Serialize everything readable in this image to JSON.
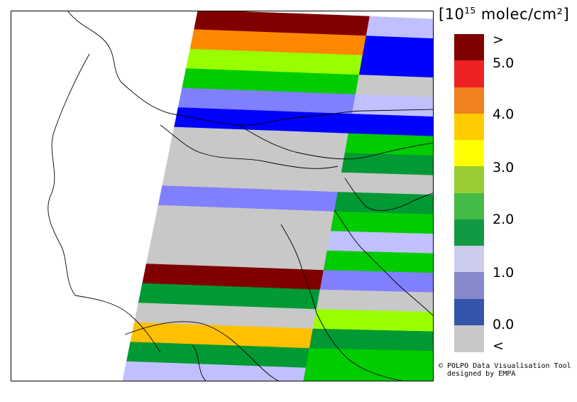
{
  "legend": {
    "title_prefix": "[10",
    "title_exponent": "15",
    "title_suffix": " molec/cm²]",
    "colors": [
      "#800000",
      "#ee2222",
      "#f08020",
      "#ffcc00",
      "#ffff00",
      "#99cc33",
      "#44bb44",
      "#119944",
      "#ccccee",
      "#8888cc",
      "#3355aa",
      "#c8c8c8"
    ],
    "labels": [
      ">",
      "5.0",
      "4.0",
      "3.0",
      "2.0",
      "1.0",
      "0.0",
      "<"
    ]
  },
  "credit": {
    "line1": "© POLPO Data Visualisation Tool",
    "line2": "designed by EMPA"
  },
  "palette": {
    "dark_red": "#800000",
    "orange": "#ff8800",
    "amber": "#ffc000",
    "lime": "#99ff00",
    "green": "#00cc00",
    "dark_green": "#009933",
    "light_lavender": "#c0c0ff",
    "lavender": "#8080ff",
    "blue": "#0000ff",
    "grey": "#c8c8c8"
  },
  "swath": {
    "pixels": [
      {
        "row": 0,
        "left": "dark_red",
        "right": "light_lavender"
      },
      {
        "row": 1,
        "left": "orange",
        "right": "blue"
      },
      {
        "row": 2,
        "left": "lime",
        "right": "blue"
      },
      {
        "row": 3,
        "left": "green",
        "right": "grey"
      },
      {
        "row": 4,
        "left": "lavender",
        "right": "light_lavender"
      },
      {
        "row": 5,
        "left": "blue",
        "right": "blue"
      },
      {
        "row": 6,
        "left": "grey",
        "right": "green"
      },
      {
        "row": 7,
        "left": "grey",
        "right": "dark_green"
      },
      {
        "row": 8,
        "left": "grey",
        "right": "grey"
      },
      {
        "row": 9,
        "left": "lavender",
        "right": "dark_green"
      },
      {
        "row": 10,
        "left": "grey",
        "right": "green"
      },
      {
        "row": 11,
        "left": "grey",
        "right": "light_lavender"
      },
      {
        "row": 12,
        "left": "grey",
        "right": "green"
      },
      {
        "row": 13,
        "left": "dark_red",
        "right": "lavender"
      },
      {
        "row": 14,
        "left": "dark_green",
        "right": "grey"
      },
      {
        "row": 15,
        "left": "grey",
        "right": "lime"
      },
      {
        "row": 16,
        "left": "amber",
        "right": "dark_green"
      },
      {
        "row": 17,
        "left": "dark_green",
        "right": "green"
      },
      {
        "row": 18,
        "left": "light_lavender",
        "right": "green"
      }
    ]
  }
}
